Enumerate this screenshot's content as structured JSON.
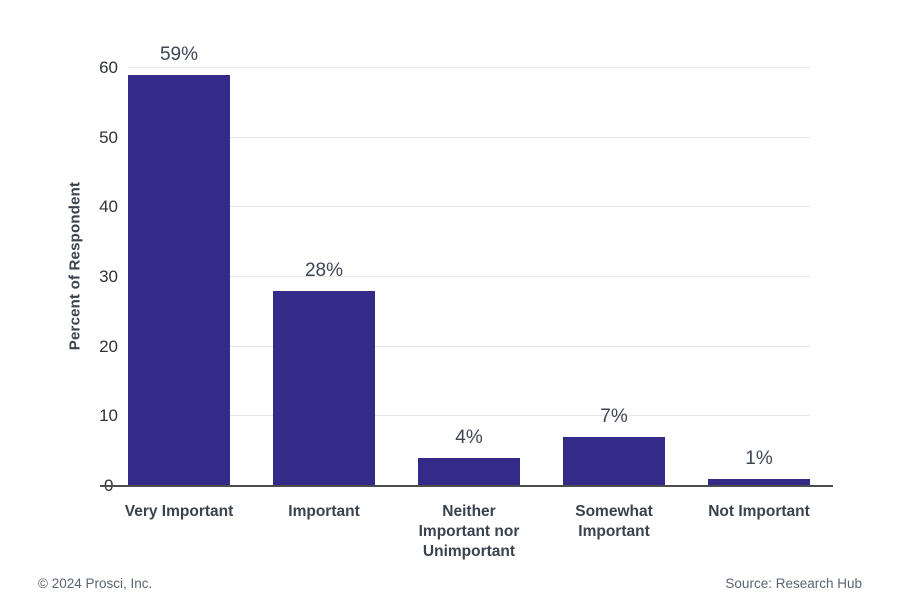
{
  "chart_data": {
    "type": "bar",
    "title": "",
    "xlabel": "",
    "ylabel": "Percent of Respondent",
    "ymax": 60,
    "ylim": [
      0,
      60
    ],
    "yticks": [
      0,
      10,
      20,
      30,
      40,
      50,
      60
    ],
    "grid": "horizontal",
    "legend_position": "none",
    "categories": [
      "Very Important",
      "Important",
      "Neither Important nor Unimportant",
      "Somewhat Important",
      "Not Important"
    ],
    "categories_display": [
      "Very Important",
      "Important",
      "Neither\nImportant nor\nUnimportant",
      "Somewhat\nImportant",
      "Not Important"
    ],
    "values": [
      59,
      28,
      4,
      7,
      1
    ],
    "value_labels": [
      "59%",
      "28%",
      "4%",
      "7%",
      "1%"
    ],
    "bar_color": "#332b87",
    "gridline_color": "#e8e8ea",
    "axis_line_color": "#4c4d4f"
  },
  "footer": {
    "copyright": "© 2024 Prosci, Inc.",
    "source": "Source: Research Hub"
  }
}
